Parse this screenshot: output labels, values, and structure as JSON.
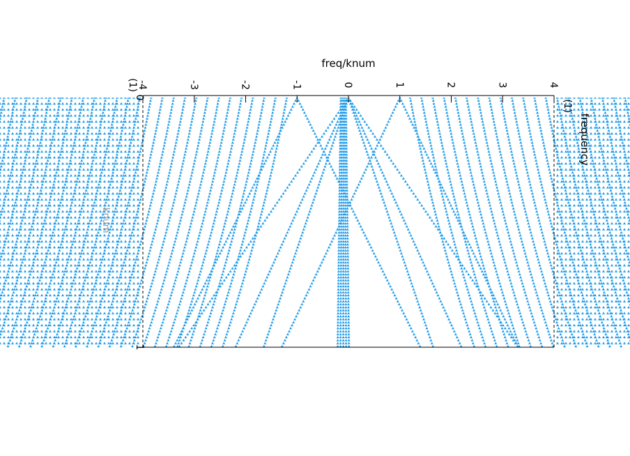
{
  "chart_data": {
    "type": "scatter",
    "title": "",
    "top_axis": {
      "label": "freq/knum",
      "ticks": [
        "-4",
        "-3",
        "-2",
        "-1",
        "0",
        "1",
        "2",
        "3",
        "4"
      ],
      "range": [
        -4,
        4
      ],
      "end_label": "(1)"
    },
    "right_axis": {
      "label": "frequency",
      "unit": "(1)"
    },
    "left_axis": {
      "label": "knum",
      "ticks": [
        "0",
        "1"
      ],
      "range": [
        0,
        1
      ]
    },
    "marker": "triangle",
    "colors": {
      "points": "#1e9be8",
      "axis": "#000000"
    },
    "series": [
      {
        "name": "",
        "type": "band",
        "x": -0.1,
        "k_range": [
          0.0,
          1.0
        ]
      },
      {
        "name": "",
        "type": "pair",
        "x0": 0.0,
        "slope": 1.65
      },
      {
        "name": "",
        "type": "pair",
        "x0": 0.0,
        "slope": 2.2
      },
      {
        "name": "",
        "type": "pair",
        "x0": 0.0,
        "slope": 3.3
      },
      {
        "name": "",
        "type": "pair",
        "x0": -1.0,
        "slope": 2.4
      },
      {
        "name": "",
        "type": "pair",
        "x0": 1.0,
        "slope": 2.3
      }
    ]
  }
}
